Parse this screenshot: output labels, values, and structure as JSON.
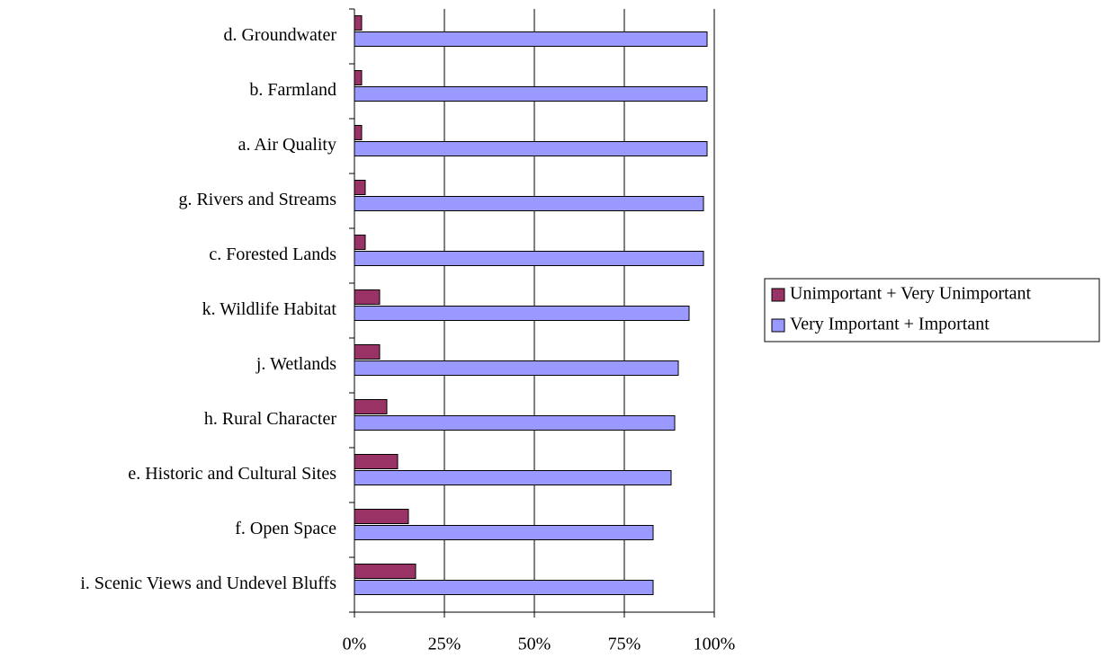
{
  "chart_data": {
    "type": "hbar",
    "categories": [
      "d. Groundwater",
      "b. Farmland",
      "a. Air Quality",
      "g. Rivers and Streams",
      "c. Forested Lands",
      "k. Wildlife Habitat",
      "j. Wetlands",
      "h. Rural Character",
      "e. Historic and Cultural Sites",
      "f.  Open Space",
      "i. Scenic Views and Undevel Bluffs"
    ],
    "series": [
      {
        "name": "Unimportant + Very Unimportant",
        "color": "#993366",
        "values": [
          2,
          2,
          2,
          3,
          3,
          7,
          7,
          9,
          12,
          15,
          17
        ]
      },
      {
        "name": "Very Important + Important",
        "color": "#9999ff",
        "values": [
          98,
          98,
          98,
          97,
          97,
          93,
          90,
          89,
          88,
          83,
          83
        ]
      }
    ],
    "xlim": [
      0,
      100
    ],
    "xticks": [
      {
        "value": 0,
        "label": "0%"
      },
      {
        "value": 25,
        "label": "25%"
      },
      {
        "value": 50,
        "label": "50%"
      },
      {
        "value": 75,
        "label": "75%"
      },
      {
        "value": 100,
        "label": "100%"
      }
    ],
    "grid": true,
    "legend": "right"
  }
}
